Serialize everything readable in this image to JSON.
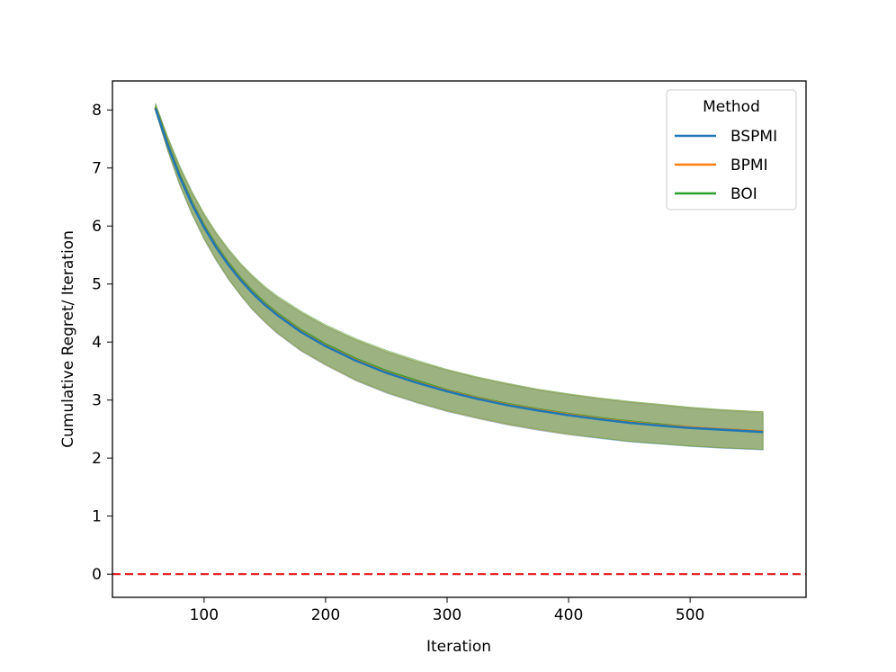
{
  "chart_data": {
    "type": "line",
    "title": "",
    "xlabel": "Iteration",
    "ylabel": "Cumulative Regret/ Iteration",
    "xlim": [
      24.6,
      595.4
    ],
    "ylim": [
      -0.4,
      8.5
    ],
    "xticks": [
      100,
      200,
      300,
      400,
      500
    ],
    "yticks": [
      0,
      1,
      2,
      3,
      4,
      5,
      6,
      7,
      8
    ],
    "grid": false,
    "legend": {
      "title": "Method",
      "placement": "top-right"
    },
    "reference_line": {
      "y": 0,
      "color": "#e41a1c",
      "style": "dashed"
    },
    "x": [
      60,
      70,
      80,
      90,
      100,
      110,
      120,
      130,
      140,
      150,
      160,
      180,
      200,
      225,
      250,
      275,
      300,
      325,
      350,
      375,
      400,
      425,
      450,
      475,
      500,
      525,
      560
    ],
    "series": [
      {
        "name": "BSPMI",
        "color": "#1f77b4",
        "mean": [
          8.03,
          7.4,
          6.85,
          6.38,
          5.98,
          5.63,
          5.33,
          5.07,
          4.84,
          4.64,
          4.47,
          4.17,
          3.93,
          3.68,
          3.47,
          3.3,
          3.15,
          3.02,
          2.91,
          2.82,
          2.74,
          2.67,
          2.61,
          2.56,
          2.52,
          2.49,
          2.45
        ],
        "lower": [
          7.98,
          7.3,
          6.7,
          6.2,
          5.77,
          5.4,
          5.08,
          4.8,
          4.55,
          4.34,
          4.15,
          3.84,
          3.6,
          3.33,
          3.12,
          2.95,
          2.8,
          2.68,
          2.57,
          2.48,
          2.4,
          2.34,
          2.28,
          2.24,
          2.2,
          2.17,
          2.14
        ],
        "upper": [
          8.1,
          7.52,
          7.01,
          6.57,
          6.19,
          5.86,
          5.58,
          5.33,
          5.12,
          4.93,
          4.77,
          4.5,
          4.27,
          4.03,
          3.83,
          3.66,
          3.51,
          3.38,
          3.27,
          3.17,
          3.09,
          3.02,
          2.96,
          2.91,
          2.86,
          2.82,
          2.78
        ]
      },
      {
        "name": "BPMI",
        "color": "#ff7f0e",
        "mean": [
          8.04,
          7.41,
          6.86,
          6.39,
          5.99,
          5.64,
          5.34,
          5.08,
          4.85,
          4.65,
          4.48,
          4.18,
          3.94,
          3.69,
          3.48,
          3.31,
          3.16,
          3.03,
          2.92,
          2.83,
          2.75,
          2.68,
          2.62,
          2.57,
          2.53,
          2.5,
          2.46
        ],
        "lower": [
          7.98,
          7.31,
          6.71,
          6.21,
          5.78,
          5.41,
          5.09,
          4.81,
          4.56,
          4.35,
          4.16,
          3.85,
          3.61,
          3.34,
          3.13,
          2.96,
          2.81,
          2.69,
          2.58,
          2.49,
          2.41,
          2.35,
          2.29,
          2.25,
          2.21,
          2.18,
          2.15
        ],
        "upper": [
          8.11,
          7.53,
          7.02,
          6.58,
          6.2,
          5.87,
          5.59,
          5.34,
          5.13,
          4.94,
          4.78,
          4.51,
          4.28,
          4.04,
          3.84,
          3.67,
          3.52,
          3.39,
          3.28,
          3.18,
          3.1,
          3.03,
          2.97,
          2.92,
          2.87,
          2.83,
          2.8
        ]
      },
      {
        "name": "BOI",
        "color": "#2ca02c",
        "mean": [
          8.05,
          7.43,
          6.88,
          6.41,
          6.01,
          5.66,
          5.36,
          5.1,
          4.87,
          4.67,
          4.5,
          4.2,
          3.96,
          3.71,
          3.5,
          3.33,
          3.17,
          3.04,
          2.93,
          2.84,
          2.76,
          2.69,
          2.63,
          2.58,
          2.53,
          2.5,
          2.46
        ],
        "lower": [
          7.99,
          7.32,
          6.72,
          6.22,
          5.79,
          5.42,
          5.1,
          4.82,
          4.57,
          4.36,
          4.17,
          3.86,
          3.62,
          3.35,
          3.14,
          2.97,
          2.82,
          2.7,
          2.59,
          2.5,
          2.42,
          2.35,
          2.29,
          2.25,
          2.21,
          2.18,
          2.15
        ],
        "upper": [
          8.12,
          7.55,
          7.04,
          6.6,
          6.22,
          5.89,
          5.61,
          5.36,
          5.15,
          4.96,
          4.8,
          4.53,
          4.3,
          4.06,
          3.86,
          3.69,
          3.53,
          3.4,
          3.29,
          3.19,
          3.11,
          3.04,
          2.98,
          2.93,
          2.88,
          2.84,
          2.8
        ]
      }
    ]
  }
}
